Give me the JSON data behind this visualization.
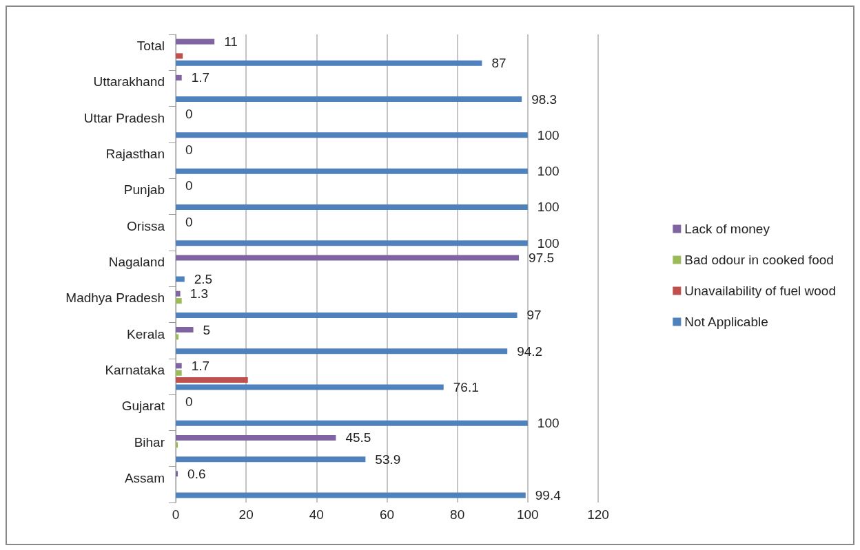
{
  "chart_data": {
    "type": "bar",
    "orientation": "horizontal",
    "categories": [
      "Total",
      "Uttarakhand",
      "Uttar Pradesh",
      "Rajasthan",
      "Punjab",
      "Orissa",
      "Nagaland",
      "Madhya Pradesh",
      "Kerala",
      "Karnataka",
      "Gujarat",
      "Bihar",
      "Assam"
    ],
    "series": [
      {
        "name": "Lack of money",
        "color": "#8064a2",
        "values": [
          11,
          1.7,
          0,
          0,
          0,
          0,
          97.5,
          1.3,
          5,
          1.7,
          0,
          45.5,
          0.6
        ],
        "value_labels": [
          "11",
          "1.7",
          "0",
          "0",
          "0",
          "0",
          "97.5",
          "1.3",
          "5",
          "1.7",
          "0",
          "45.5",
          "0.6"
        ]
      },
      {
        "name": "Bad odour in cooked food",
        "color": "#9bbb59",
        "values": [
          0,
          0,
          0,
          0,
          0,
          0,
          0,
          1.7,
          0.8,
          1.7,
          0,
          0.6,
          0
        ]
      },
      {
        "name": "Unavailability of fuel wood",
        "color": "#c0504d",
        "values": [
          2,
          0,
          0,
          0,
          0,
          0,
          0,
          0,
          0,
          20.5,
          0,
          0,
          0
        ]
      },
      {
        "name": "Not Applicable",
        "color": "#4f81bd",
        "values": [
          87,
          98.3,
          100,
          100,
          100,
          100,
          2.5,
          97,
          94.2,
          76.1,
          100,
          53.9,
          99.4
        ],
        "value_labels": [
          "87",
          "98.3",
          "100",
          "100",
          "100",
          "100",
          "2.5",
          "97",
          "94.2",
          "76.1",
          "100",
          "53.9",
          "99.4"
        ]
      }
    ],
    "xlim": [
      0,
      120
    ],
    "xticks": [
      0,
      20,
      40,
      60,
      80,
      100,
      120
    ],
    "grid": "x",
    "legend": "right"
  }
}
